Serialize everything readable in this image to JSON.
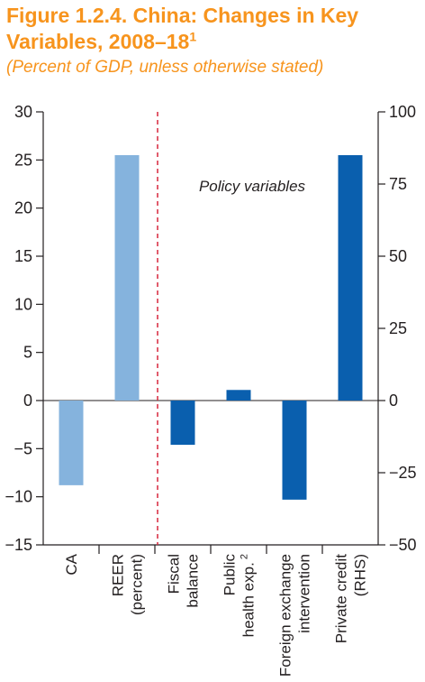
{
  "title": "Figure 1.2.4. China: Changes in Key Variables, 2008–18",
  "title_footnote": "1",
  "subtitle": "(Percent of GDP, unless otherwise stated)",
  "colors": {
    "title": "#f7941d",
    "light_bar": "#85b3dd",
    "dark_bar": "#0a5fae",
    "divider": "#d7263d",
    "text": "#231f20"
  },
  "chart_data": {
    "type": "bar",
    "categories": [
      {
        "lines": [
          "CA"
        ]
      },
      {
        "lines": [
          "REER",
          "(percent)"
        ]
      },
      {
        "lines": [
          "Fiscal",
          "balance"
        ]
      },
      {
        "lines": [
          "Public",
          "health exp."
        ],
        "footnote": "2"
      },
      {
        "lines": [
          "Foreign exchange",
          "intervention"
        ]
      },
      {
        "lines": [
          "Private credit",
          "(RHS)"
        ]
      }
    ],
    "values": [
      -8.8,
      25.5,
      -4.6,
      1.1,
      -10.3,
      85
    ],
    "axis": [
      "left",
      "left",
      "left",
      "left",
      "left",
      "right"
    ],
    "shade": [
      "light",
      "light",
      "dark",
      "dark",
      "dark",
      "dark"
    ],
    "left_axis": {
      "ylim": [
        -15,
        30
      ],
      "ticks": [
        30,
        25,
        20,
        15,
        10,
        5,
        0,
        -5,
        -10,
        -15
      ],
      "tick_labels": [
        "30",
        "25",
        "20",
        "15",
        "10",
        "5",
        "0",
        "−5",
        "−10",
        "−15"
      ]
    },
    "right_axis": {
      "ylim": [
        -50,
        100
      ],
      "ticks": [
        100,
        75,
        50,
        25,
        0,
        -25,
        -50
      ],
      "tick_labels": [
        "100",
        "75",
        "50",
        "25",
        "0",
        "−25",
        "−50"
      ]
    },
    "annotation": "Policy variables",
    "divider_after_category": 1,
    "grid": false
  }
}
